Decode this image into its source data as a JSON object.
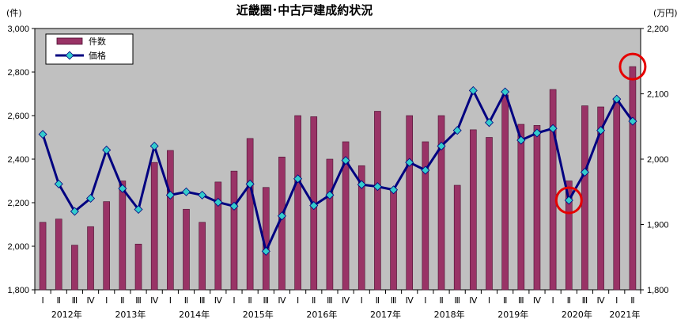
{
  "chart_data": {
    "type": "bar",
    "title": "近畿圏･中古戸建成約状況",
    "left_unit": "(件)",
    "right_unit": "(万円)",
    "y_left_range": [
      1800,
      3000
    ],
    "y_left_ticks": [
      "1,800",
      "2,000",
      "2,200",
      "2,400",
      "2,600",
      "2,800",
      "3,000"
    ],
    "y_right_range": [
      1800,
      2200
    ],
    "y_right_ticks": [
      "1,800",
      "1,900",
      "2,000",
      "2,100",
      "2,200"
    ],
    "quarters": [
      "Ⅰ",
      "Ⅱ",
      "Ⅲ",
      "Ⅳ",
      "Ⅰ",
      "Ⅱ",
      "Ⅲ",
      "Ⅳ",
      "Ⅰ",
      "Ⅱ",
      "Ⅲ",
      "Ⅳ",
      "Ⅰ",
      "Ⅱ",
      "Ⅲ",
      "Ⅳ",
      "Ⅰ",
      "Ⅱ",
      "Ⅲ",
      "Ⅳ",
      "Ⅰ",
      "Ⅱ",
      "Ⅲ",
      "Ⅳ",
      "Ⅰ",
      "Ⅱ",
      "Ⅲ",
      "Ⅳ",
      "Ⅰ",
      "Ⅱ",
      "Ⅲ",
      "Ⅳ",
      "Ⅰ",
      "Ⅱ",
      "Ⅲ",
      "Ⅳ",
      "Ⅰ",
      "Ⅱ"
    ],
    "years": [
      {
        "label": "2012年",
        "start": 0,
        "count": 4
      },
      {
        "label": "2013年",
        "start": 4,
        "count": 4
      },
      {
        "label": "2014年",
        "start": 8,
        "count": 4
      },
      {
        "label": "2015年",
        "start": 12,
        "count": 4
      },
      {
        "label": "2016年",
        "start": 16,
        "count": 4
      },
      {
        "label": "2017年",
        "start": 20,
        "count": 4
      },
      {
        "label": "2018年",
        "start": 24,
        "count": 4
      },
      {
        "label": "2019年",
        "start": 28,
        "count": 4
      },
      {
        "label": "2020年",
        "start": 32,
        "count": 4
      },
      {
        "label": "2021年",
        "start": 36,
        "count": 2
      }
    ],
    "series": [
      {
        "name": "件数",
        "type": "bar",
        "axis": "left",
        "values": [
          2110,
          2125,
          2005,
          2090,
          2205,
          2300,
          2010,
          2385,
          2440,
          2170,
          2110,
          2295,
          2345,
          2495,
          2270,
          2410,
          2600,
          2595,
          2400,
          2480,
          2370,
          2620,
          2265,
          2600,
          2480,
          2600,
          2280,
          2535,
          2500,
          2695,
          2560,
          2555,
          2720,
          2300,
          2645,
          2640,
          2680,
          2825
        ]
      },
      {
        "name": "価格",
        "type": "line",
        "axis": "right",
        "values": [
          2038,
          1962,
          1920,
          1940,
          2014,
          1955,
          1923,
          2020,
          1945,
          1950,
          1945,
          1934,
          1928,
          1962,
          1859,
          1913,
          1970,
          1929,
          1945,
          1998,
          1961,
          1958,
          1953,
          1995,
          1983,
          2020,
          2044,
          2105,
          2056,
          2103,
          2029,
          2040,
          2047,
          1937,
          1980,
          2044,
          2092,
          2058
        ]
      }
    ],
    "legend": [
      "件数",
      "価格"
    ],
    "colors": {
      "bar": "#993366",
      "bar_edge": "#4a1030",
      "line": "#000080",
      "marker": "#33CCCC",
      "plot_bg": "#C0C0C0",
      "highlight": "#E60000"
    },
    "highlights": [
      {
        "series": "価格",
        "index": 33
      },
      {
        "series": "件数",
        "index": 37
      }
    ],
    "grid": false
  }
}
